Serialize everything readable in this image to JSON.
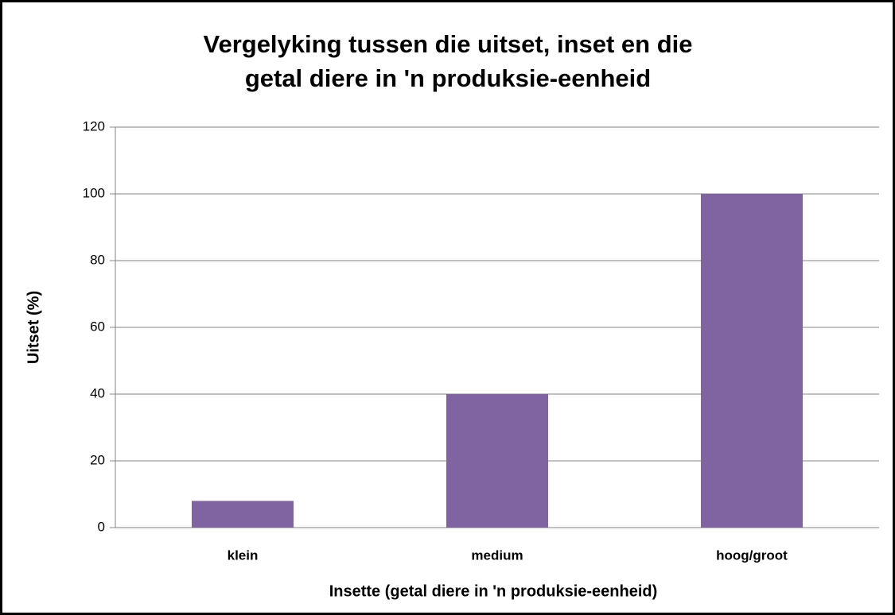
{
  "chart_data": {
    "type": "bar",
    "title": [
      "Vergelyking tussen die uitset, inset en die",
      "getal diere in 'n produksie-eenheid"
    ],
    "x_label": "Insette (getal diere in 'n produksie-eenheid)",
    "y_label": "Uitset (%)",
    "categories": [
      "klein",
      "medium",
      "hoog/groot"
    ],
    "values": [
      8,
      40,
      100
    ],
    "color": "#8064a2",
    "ylim": [
      0,
      120
    ],
    "yticks": [
      0,
      20,
      40,
      60,
      80,
      100,
      120
    ],
    "grid": true
  }
}
